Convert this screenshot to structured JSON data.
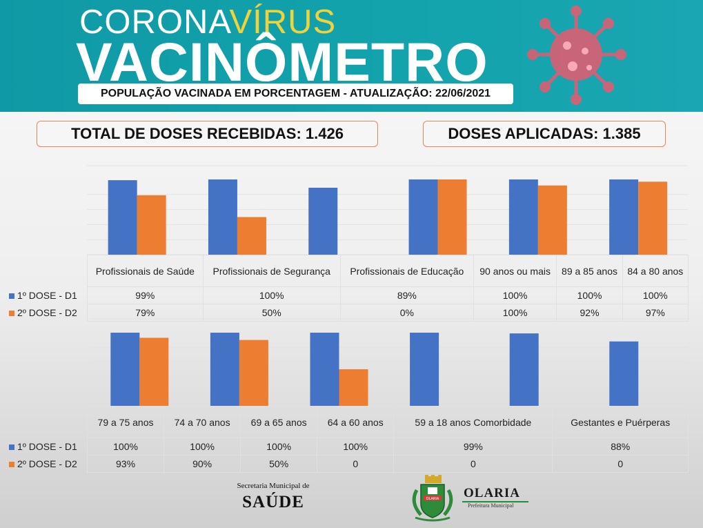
{
  "header": {
    "title_part1": "CORONA",
    "title_part2": "VÍRUS",
    "title_main": "VACINÔMETRO",
    "subtitle": "POPULAÇÃO VACINADA EM PORCENTAGEM - ATUALIZAÇÃO: 22/06/2021"
  },
  "stats": {
    "received": "TOTAL DE DOSES RECEBIDAS: 1.426",
    "applied": "DOSES APLICADAS: 1.385"
  },
  "colors": {
    "d1": "#4472c4",
    "d2": "#ed7d31",
    "header_bg": "#12a3ac",
    "accent": "#f0d23a"
  },
  "chart_data": [
    {
      "type": "bar",
      "categories": [
        "Profissionais de Saúde",
        "Profissionais de Segurança",
        "Profissionais de Educação",
        "90 anos ou mais",
        "89 a 85 anos",
        "84 a 80 anos"
      ],
      "series": [
        {
          "name": "1º DOSE - D1",
          "values": [
            99,
            100,
            89,
            100,
            100,
            100
          ],
          "labels": [
            "99%",
            "100%",
            "89%",
            "100%",
            "100%",
            "100%"
          ]
        },
        {
          "name": "2º DOSE - D2",
          "values": [
            79,
            50,
            0,
            100,
            92,
            97
          ],
          "labels": [
            "79%",
            "50%",
            "0%",
            "100%",
            "92%",
            "97%"
          ]
        }
      ],
      "ylim": [
        0,
        100
      ],
      "grid": true
    },
    {
      "type": "bar",
      "categories": [
        "79 a 75 anos",
        "74 a 70 anos",
        "69 a 65 anos",
        "64 a 60 anos",
        "59 a 18 anos Comorbidade",
        "Gestantes e Puérperas"
      ],
      "series": [
        {
          "name": "1º DOSE - D1",
          "values": [
            100,
            100,
            100,
            100,
            99,
            88
          ],
          "labels": [
            "100%",
            "100%",
            "100%",
            "100%",
            "99%",
            "88%"
          ]
        },
        {
          "name": "2º DOSE - D2",
          "values": [
            93,
            90,
            50,
            0,
            0,
            0
          ],
          "labels": [
            "93%",
            "90%",
            "50%",
            "0",
            "0",
            "0"
          ]
        }
      ],
      "ylim": [
        0,
        100
      ],
      "grid": true
    }
  ],
  "footer": {
    "secretaria_small": "Secretaria Municipal de",
    "secretaria_big": "SAÚDE",
    "brand_name": "OLARIA",
    "brand_sub": "Prefeitura Municipal",
    "crest_text": "OLARIA"
  }
}
